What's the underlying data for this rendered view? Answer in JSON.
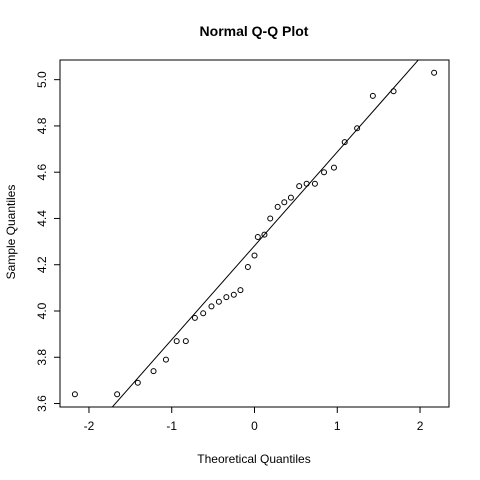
{
  "chart_data": {
    "type": "scatter",
    "title": "Normal Q-Q Plot",
    "xlabel": "Theoretical Quantiles",
    "ylabel": "Sample Quantiles",
    "xlim": [
      -2.35,
      2.35
    ],
    "ylim": [
      3.585,
      5.085
    ],
    "x_ticks": [
      -2,
      -1,
      0,
      1,
      2
    ],
    "x_tick_labels": [
      "-2",
      "-1",
      "0",
      "1",
      "2"
    ],
    "y_ticks": [
      3.6,
      3.8,
      4.0,
      4.2,
      4.4,
      4.6,
      4.8,
      5.0
    ],
    "y_tick_labels": [
      "3.6",
      "3.8",
      "4.0",
      "4.2",
      "4.4",
      "4.6",
      "4.8",
      "5.0"
    ],
    "grid": false,
    "points": [
      {
        "x": -2.17,
        "y": 3.64
      },
      {
        "x": -1.66,
        "y": 3.64
      },
      {
        "x": -1.41,
        "y": 3.69
      },
      {
        "x": -1.22,
        "y": 3.74
      },
      {
        "x": -1.07,
        "y": 3.79
      },
      {
        "x": -0.94,
        "y": 3.87
      },
      {
        "x": -0.83,
        "y": 3.87
      },
      {
        "x": -0.72,
        "y": 3.97
      },
      {
        "x": -0.62,
        "y": 3.99
      },
      {
        "x": -0.52,
        "y": 4.02
      },
      {
        "x": -0.43,
        "y": 4.04
      },
      {
        "x": -0.34,
        "y": 4.06
      },
      {
        "x": -0.25,
        "y": 4.07
      },
      {
        "x": -0.17,
        "y": 4.09
      },
      {
        "x": -0.08,
        "y": 4.19
      },
      {
        "x": 0.0,
        "y": 4.24
      },
      {
        "x": 0.04,
        "y": 4.32
      },
      {
        "x": 0.12,
        "y": 4.33
      },
      {
        "x": 0.19,
        "y": 4.4
      },
      {
        "x": 0.28,
        "y": 4.45
      },
      {
        "x": 0.36,
        "y": 4.47
      },
      {
        "x": 0.44,
        "y": 4.49
      },
      {
        "x": 0.54,
        "y": 4.54
      },
      {
        "x": 0.63,
        "y": 4.55
      },
      {
        "x": 0.73,
        "y": 4.55
      },
      {
        "x": 0.84,
        "y": 4.6
      },
      {
        "x": 0.96,
        "y": 4.62
      },
      {
        "x": 1.09,
        "y": 4.73
      },
      {
        "x": 1.24,
        "y": 4.79
      },
      {
        "x": 1.43,
        "y": 4.93
      },
      {
        "x": 1.68,
        "y": 4.95
      },
      {
        "x": 2.17,
        "y": 5.03
      }
    ],
    "reference_line": {
      "intercept": 4.282,
      "slope": 0.4057
    }
  }
}
